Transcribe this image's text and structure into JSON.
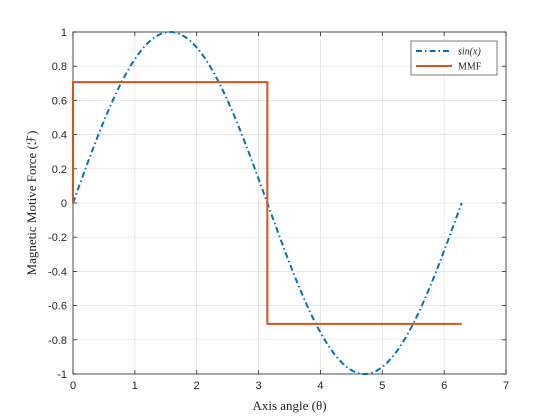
{
  "chart_data": {
    "type": "line",
    "xlabel": "Axis angle (θ)",
    "ylabel": "Magnetic Motive Force (ℱ)",
    "xlim": [
      0,
      7
    ],
    "ylim": [
      -1,
      1
    ],
    "x_ticks": [
      "0",
      "1",
      "2",
      "3",
      "4",
      "5",
      "6",
      "7"
    ],
    "y_ticks": [
      "1",
      "0.8",
      "0.6",
      "0.4",
      "0.2",
      "0",
      "-0.2",
      "-0.4",
      "-0.6",
      "-0.8",
      "-1"
    ],
    "grid": true,
    "legend_position": "top-right",
    "series": [
      {
        "name": "sin(x)",
        "style": "dash-dot",
        "color": "#0072BD",
        "function": "sin(x)",
        "x_range": [
          0,
          6.2832
        ]
      },
      {
        "name": "MMF",
        "style": "solid",
        "color": "#D95319",
        "points": [
          [
            0,
            0
          ],
          [
            0,
            0.7071
          ],
          [
            3.1416,
            0.7071
          ],
          [
            3.1416,
            -0.7071
          ],
          [
            6.2832,
            -0.7071
          ]
        ]
      }
    ]
  }
}
